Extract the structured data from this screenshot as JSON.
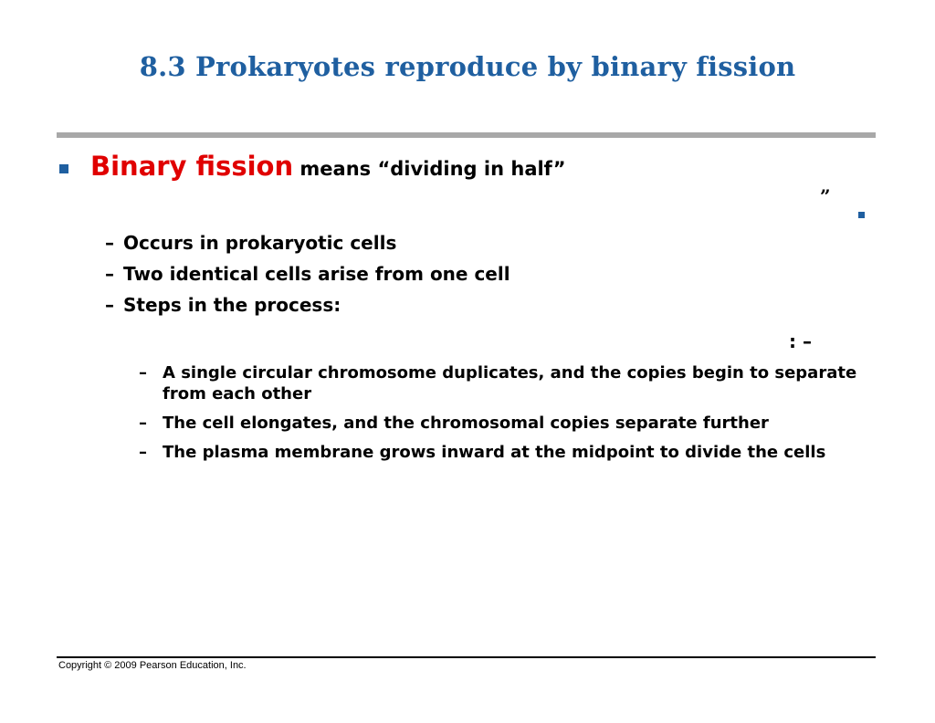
{
  "slide": {
    "title": "8.3 Prokaryotes reproduce by binary fission",
    "main_bullet": {
      "term": "Binary fission",
      "rest": " means “dividing in half”"
    },
    "stray_marks": {
      "quote": "”",
      "colon_dash": ": –"
    },
    "sub_items": [
      {
        "dash": "–",
        "text": "Occurs in prokaryotic cells"
      },
      {
        "dash": "–",
        "text": "Two identical cells arise from one cell"
      },
      {
        "dash": "–",
        "text": "Steps in the process:"
      }
    ],
    "steps": [
      {
        "dash": "–",
        "text": "A single circular chromosome duplicates, and the copies begin to separate from each other"
      },
      {
        "dash": "–",
        "text": "The cell elongates, and the chromosomal copies separate further"
      },
      {
        "dash": "–",
        "text": "The plasma membrane grows inward at the midpoint to divide the cells"
      }
    ],
    "footer": "Copyright © 2009 Pearson Education, Inc."
  },
  "colors": {
    "title": "#1f5fa0",
    "term": "#e00000",
    "bullet": "#1f5fa0",
    "rule": "#a8a8a8"
  }
}
